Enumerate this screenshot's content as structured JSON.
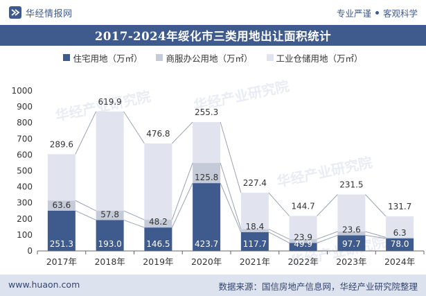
{
  "header": {
    "brand": "华经情报网",
    "slogan_left": "专业严谨",
    "slogan_right": "客观科学"
  },
  "title": "2017-2024年绥化市三类用地出让面积统计",
  "footer": {
    "website": "www.huaon.com",
    "source": "数据来源：国信房地产信息网，华经产业研究院整理"
  },
  "watermark": "华经产业研究院",
  "colors": {
    "residential": "#3f5a8c",
    "commercial": "#c4cad8",
    "industrial": "#e1e4ef",
    "title_bg": "#3f5a8c",
    "footer_bg": "#dde3ee"
  },
  "chart_data": {
    "type": "bar",
    "stacked": true,
    "categories": [
      "2017年",
      "2018年",
      "2019年",
      "2020年",
      "2021年",
      "2022年",
      "2023年",
      "2024年"
    ],
    "series": [
      {
        "name": "住宅用地（万㎡）",
        "values": [
          251.3,
          193.0,
          146.5,
          423.7,
          117.7,
          49.9,
          97.7,
          78.0
        ]
      },
      {
        "name": "商服办公用地（万㎡）",
        "values": [
          63.6,
          57.8,
          48.2,
          125.8,
          18.4,
          23.9,
          23.6,
          6.3
        ]
      },
      {
        "name": "工业仓储用地（万㎡）",
        "values": [
          289.6,
          619.9,
          476.8,
          255.3,
          227.4,
          144.7,
          231.5,
          131.7
        ]
      }
    ],
    "ylim": [
      0,
      1000
    ],
    "yticks": [
      0,
      100,
      200,
      300,
      400,
      500,
      600,
      700,
      800,
      900,
      1000
    ],
    "legend_position": "top",
    "grid": false
  }
}
